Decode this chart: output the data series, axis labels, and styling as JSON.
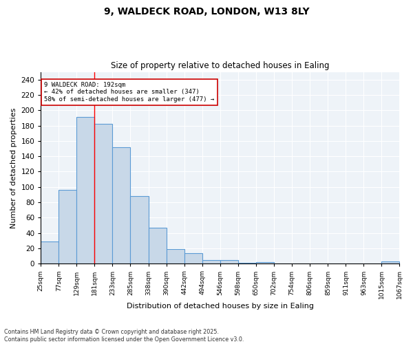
{
  "title_line1": "9, WALDECK ROAD, LONDON, W13 8LY",
  "title_line2": "Size of property relative to detached houses in Ealing",
  "xlabel": "Distribution of detached houses by size in Ealing",
  "ylabel": "Number of detached properties",
  "bins": [
    25,
    77,
    129,
    181,
    233,
    285,
    338,
    390,
    442,
    494,
    546,
    598,
    650,
    702,
    754,
    806,
    859,
    911,
    963,
    1015,
    1067
  ],
  "counts": [
    29,
    96,
    191,
    182,
    152,
    88,
    47,
    19,
    14,
    5,
    5,
    1,
    2,
    0,
    0,
    0,
    0,
    0,
    0,
    3
  ],
  "bar_color": "#c8d8e8",
  "bar_edge_color": "#5b9bd5",
  "red_line_x": 181,
  "annotation_text": "9 WALDECK ROAD: 192sqm\n← 42% of detached houses are smaller (347)\n58% of semi-detached houses are larger (477) →",
  "annotation_box_color": "#ffffff",
  "annotation_box_edge": "#cc0000",
  "ylim": [
    0,
    250
  ],
  "yticks": [
    0,
    20,
    40,
    60,
    80,
    100,
    120,
    140,
    160,
    180,
    200,
    220,
    240
  ],
  "footnote": "Contains HM Land Registry data © Crown copyright and database right 2025.\nContains public sector information licensed under the Open Government Licence v3.0.",
  "bg_color": "#eef3f8",
  "grid_color": "#ffffff"
}
